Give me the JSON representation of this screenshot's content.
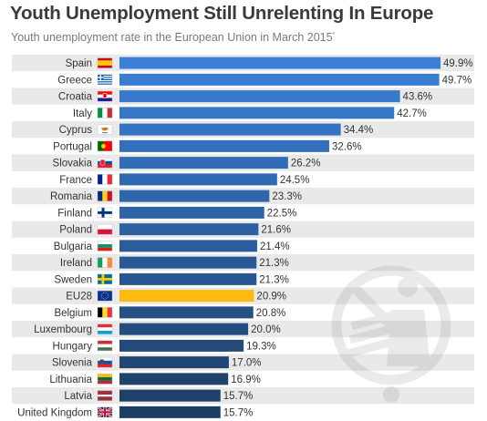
{
  "chart_data": {
    "type": "bar",
    "orientation": "horizontal",
    "title": "Youth Unemployment Still Unrelenting In Europe",
    "subtitle": "Youth unemployment rate in the European Union in March 2015",
    "subtitle_note_marker": "*",
    "categories": [
      "Spain",
      "Greece",
      "Croatia",
      "Italy",
      "Cyprus",
      "Portugal",
      "Slovakia",
      "France",
      "Romania",
      "Finland",
      "Poland",
      "Bulgaria",
      "Ireland",
      "Sweden",
      "EU28",
      "Belgium",
      "Luxembourg",
      "Hungary",
      "Slovenia",
      "Lithuania",
      "Latvia",
      "United Kingdom"
    ],
    "values": [
      49.9,
      49.7,
      43.6,
      42.7,
      34.4,
      32.6,
      26.2,
      24.5,
      23.3,
      22.5,
      21.6,
      21.4,
      21.3,
      21.3,
      20.9,
      20.8,
      20.0,
      19.3,
      17.0,
      16.9,
      15.7,
      15.7
    ],
    "value_labels": [
      "49.9%",
      "49.7%",
      "43.6%",
      "42.7%",
      "34.4%",
      "32.6%",
      "26.2%",
      "24.5%",
      "23.3%",
      "22.5%",
      "21.6%",
      "21.4%",
      "21.3%",
      "21.3%",
      "20.9%",
      "20.8%",
      "20.0%",
      "19.3%",
      "17.0%",
      "16.9%",
      "15.7%",
      "15.7%"
    ],
    "highlight_category": "EU28",
    "xlim": [
      0,
      50
    ],
    "colors": {
      "top_bar": "#3a7fd8",
      "bottom_bar": "#1d3d63",
      "highlight": "#fdba0f",
      "stripe": "#e9e9e9"
    }
  }
}
